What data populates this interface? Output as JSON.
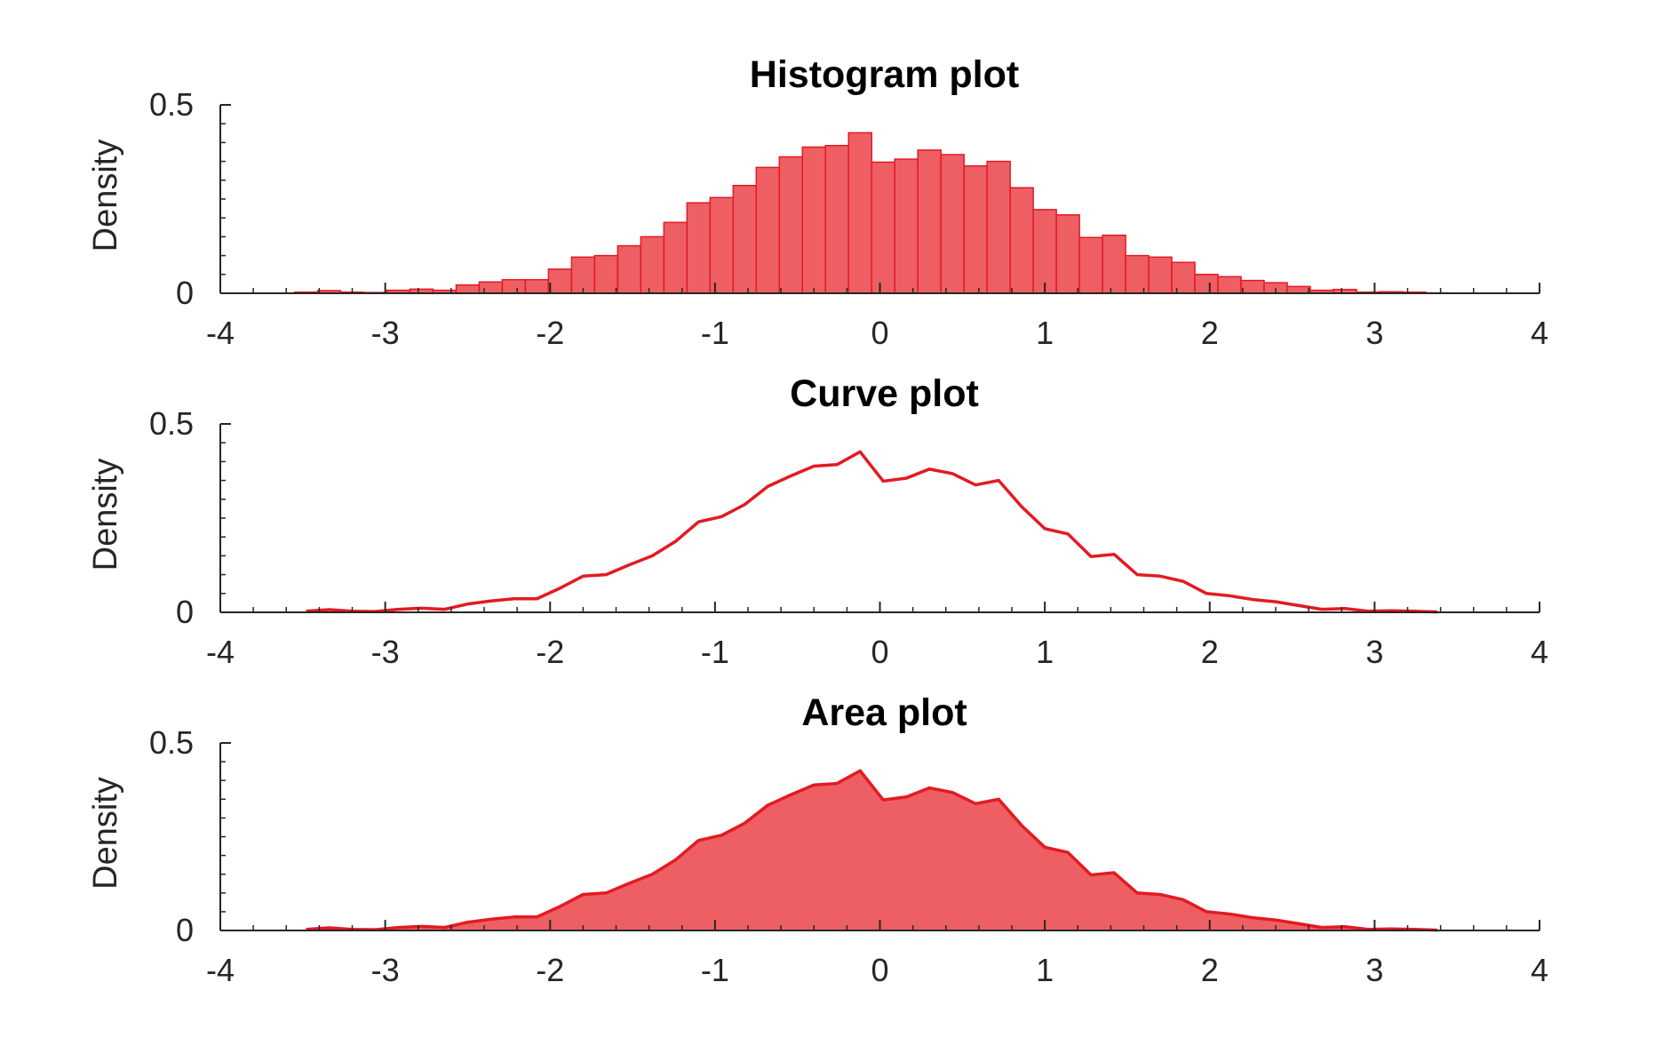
{
  "colors": {
    "fill": "#ed5f63",
    "stroke": "#e31a22",
    "axis": "#262626"
  },
  "chart_data": [
    {
      "type": "bar",
      "title": "Histogram plot",
      "xlabel": "",
      "ylabel": "Density",
      "xlim": [
        -4,
        4
      ],
      "ylim": [
        0,
        0.5
      ],
      "xticks": [
        "-4",
        "-3",
        "-2",
        "-1",
        "0",
        "1",
        "2",
        "3",
        "4"
      ],
      "yticks": [
        "0",
        "0.5"
      ],
      "bin_width": 0.14,
      "x": [
        -3.48,
        -3.34,
        -3.2,
        -3.06,
        -2.92,
        -2.78,
        -2.64,
        -2.5,
        -2.36,
        -2.22,
        -2.08,
        -1.94,
        -1.8,
        -1.66,
        -1.52,
        -1.38,
        -1.24,
        -1.1,
        -0.96,
        -0.82,
        -0.68,
        -0.54,
        -0.4,
        -0.26,
        -0.12,
        0.02,
        0.16,
        0.3,
        0.44,
        0.58,
        0.72,
        0.86,
        1.0,
        1.14,
        1.28,
        1.42,
        1.56,
        1.7,
        1.84,
        1.98,
        2.12,
        2.26,
        2.4,
        2.54,
        2.68,
        2.82,
        2.96,
        3.1,
        3.24,
        3.38
      ],
      "values": [
        0.003,
        0.007,
        0.003,
        0.002,
        0.008,
        0.011,
        0.008,
        0.022,
        0.03,
        0.036,
        0.036,
        0.064,
        0.096,
        0.1,
        0.126,
        0.15,
        0.188,
        0.24,
        0.254,
        0.286,
        0.334,
        0.362,
        0.388,
        0.392,
        0.426,
        0.348,
        0.356,
        0.38,
        0.368,
        0.338,
        0.35,
        0.28,
        0.222,
        0.208,
        0.148,
        0.154,
        0.1,
        0.096,
        0.082,
        0.05,
        0.044,
        0.034,
        0.028,
        0.018,
        0.008,
        0.01,
        0.003,
        0.004,
        0.003,
        0.001
      ]
    },
    {
      "type": "line",
      "title": "Curve plot",
      "xlabel": "",
      "ylabel": "Density",
      "xlim": [
        -4,
        4
      ],
      "ylim": [
        0,
        0.5
      ],
      "xticks": [
        "-4",
        "-3",
        "-2",
        "-1",
        "0",
        "1",
        "2",
        "3",
        "4"
      ],
      "yticks": [
        "0",
        "0.5"
      ],
      "x": [
        -3.48,
        -3.34,
        -3.2,
        -3.06,
        -2.92,
        -2.78,
        -2.64,
        -2.5,
        -2.36,
        -2.22,
        -2.08,
        -1.94,
        -1.8,
        -1.66,
        -1.52,
        -1.38,
        -1.24,
        -1.1,
        -0.96,
        -0.82,
        -0.68,
        -0.54,
        -0.4,
        -0.26,
        -0.12,
        0.02,
        0.16,
        0.3,
        0.44,
        0.58,
        0.72,
        0.86,
        1.0,
        1.14,
        1.28,
        1.42,
        1.56,
        1.7,
        1.84,
        1.98,
        2.12,
        2.26,
        2.4,
        2.54,
        2.68,
        2.82,
        2.96,
        3.1,
        3.24,
        3.38
      ],
      "values": [
        0.003,
        0.007,
        0.003,
        0.002,
        0.008,
        0.011,
        0.008,
        0.022,
        0.03,
        0.036,
        0.036,
        0.064,
        0.096,
        0.1,
        0.126,
        0.15,
        0.188,
        0.24,
        0.254,
        0.286,
        0.334,
        0.362,
        0.388,
        0.392,
        0.426,
        0.348,
        0.356,
        0.38,
        0.368,
        0.338,
        0.35,
        0.28,
        0.222,
        0.208,
        0.148,
        0.154,
        0.1,
        0.096,
        0.082,
        0.05,
        0.044,
        0.034,
        0.028,
        0.018,
        0.008,
        0.01,
        0.003,
        0.004,
        0.003,
        0.001
      ]
    },
    {
      "type": "area",
      "title": "Area plot",
      "xlabel": "",
      "ylabel": "Density",
      "xlim": [
        -4,
        4
      ],
      "ylim": [
        0,
        0.5
      ],
      "xticks": [
        "-4",
        "-3",
        "-2",
        "-1",
        "0",
        "1",
        "2",
        "3",
        "4"
      ],
      "yticks": [
        "0",
        "0.5"
      ],
      "x": [
        -3.48,
        -3.34,
        -3.2,
        -3.06,
        -2.92,
        -2.78,
        -2.64,
        -2.5,
        -2.36,
        -2.22,
        -2.08,
        -1.94,
        -1.8,
        -1.66,
        -1.52,
        -1.38,
        -1.24,
        -1.1,
        -0.96,
        -0.82,
        -0.68,
        -0.54,
        -0.4,
        -0.26,
        -0.12,
        0.02,
        0.16,
        0.3,
        0.44,
        0.58,
        0.72,
        0.86,
        1.0,
        1.14,
        1.28,
        1.42,
        1.56,
        1.7,
        1.84,
        1.98,
        2.12,
        2.26,
        2.4,
        2.54,
        2.68,
        2.82,
        2.96,
        3.1,
        3.24,
        3.38
      ],
      "values": [
        0.003,
        0.007,
        0.003,
        0.002,
        0.008,
        0.011,
        0.008,
        0.022,
        0.03,
        0.036,
        0.036,
        0.064,
        0.096,
        0.1,
        0.126,
        0.15,
        0.188,
        0.24,
        0.254,
        0.286,
        0.334,
        0.362,
        0.388,
        0.392,
        0.426,
        0.348,
        0.356,
        0.38,
        0.368,
        0.338,
        0.35,
        0.28,
        0.222,
        0.208,
        0.148,
        0.154,
        0.1,
        0.096,
        0.082,
        0.05,
        0.044,
        0.034,
        0.028,
        0.018,
        0.008,
        0.01,
        0.003,
        0.004,
        0.003,
        0.001
      ]
    }
  ]
}
